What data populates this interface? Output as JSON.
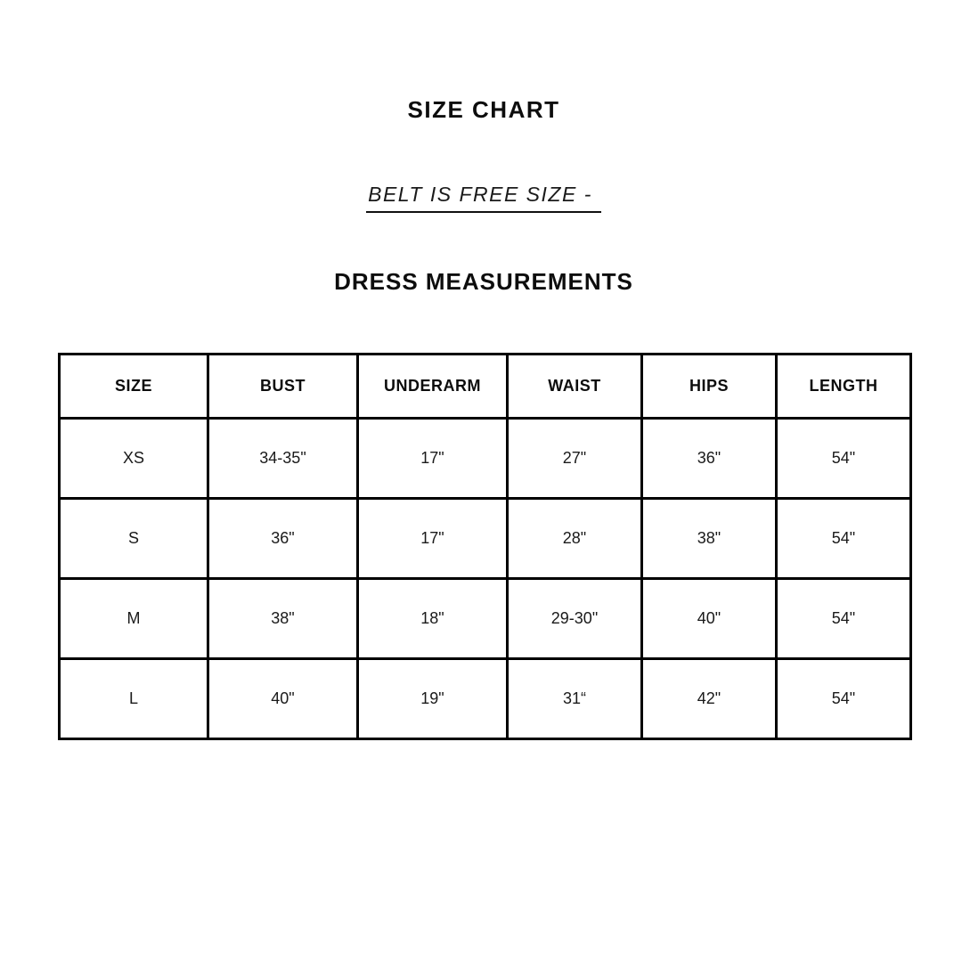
{
  "page": {
    "title": "SIZE CHART",
    "subtitle": "BELT IS FREE SIZE -",
    "section_heading": "DRESS MEASUREMENTS"
  },
  "table": {
    "columns": [
      "SIZE",
      "BUST",
      "UNDERARM",
      "WAIST",
      "HIPS",
      "LENGTH"
    ],
    "rows": [
      [
        "XS",
        "34-35\"",
        "17\"",
        "27\"",
        "36\"",
        "54\""
      ],
      [
        "S",
        "36\"",
        "17\"",
        "28\"",
        "38\"",
        "54\""
      ],
      [
        "M",
        "38\"",
        "18\"",
        "29-30\"",
        "40\"",
        "54\""
      ],
      [
        "L",
        "40\"",
        "19\"",
        "31“",
        "42\"",
        "54\""
      ]
    ]
  },
  "colors": {
    "text": "#111111",
    "border": "#000000",
    "background": "#ffffff"
  }
}
